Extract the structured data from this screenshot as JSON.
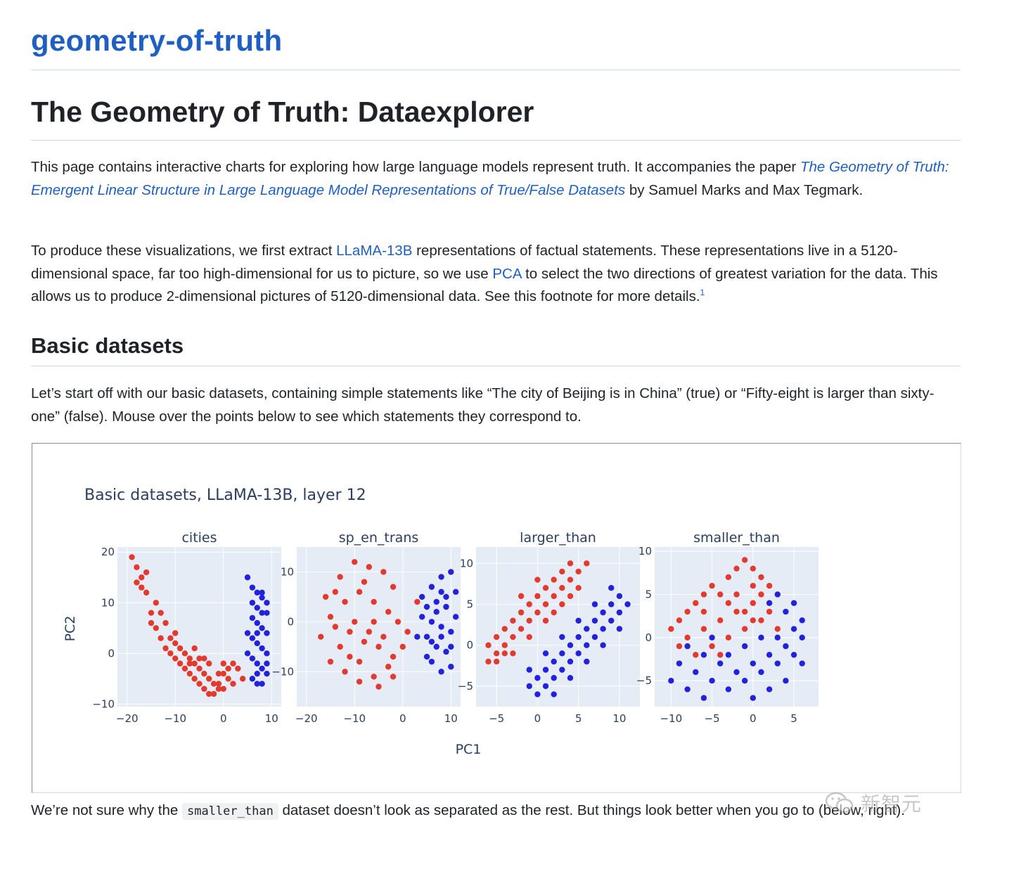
{
  "site": {
    "title": "geometry-of-truth"
  },
  "page": {
    "title": "The Geometry of Truth: Dataexplorer"
  },
  "intro": {
    "p1_before": "This page contains interactive charts for exploring how large language models represent truth. It accompanies the paper ",
    "p1_link": "The Geometry of Truth: Emergent Linear Structure in Large Language Model Representations of True/False Datasets",
    "p1_after": " by Samuel Marks and Max Tegmark.",
    "p2_a": "To produce these visualizations, we first extract ",
    "p2_link1": "LLaMA-13B",
    "p2_b": " representations of factual statements. These representations live in a 5120-dimensional space, far too high-dimensional for us to picture, so we use ",
    "p2_link2": "PCA",
    "p2_c": " to select the two directions of greatest variation for the data. This allows us to produce 2-dimensional pictures of 5120-dimensional data. See this footnote for more details.",
    "p2_footnote": "1"
  },
  "basic": {
    "heading": "Basic datasets",
    "p1": "Let’s start off with our basic datasets, containing simple statements like “The city of Beijing is in China” (true) or “Fifty-eight is larger than sixty-one” (false). Mouse over the points below to see which statements they correspond to.",
    "after_before": "We’re not sure why the ",
    "after_code": "smaller_than",
    "after_after": " dataset doesn’t look as separated as the rest. But things look better when you go to ",
    "after_tail": "(below, right)."
  },
  "watermark": {
    "text": "新智元"
  },
  "colors": {
    "true": "#2222dd",
    "false": "#e23a2e",
    "plot_bg": "#e5ecf6",
    "grid": "#ffffff",
    "link": "#1f5fbf"
  },
  "chart_data": {
    "type": "scatter",
    "title": "Basic datasets, LLaMA-13B, layer 12",
    "xlabel": "PC1",
    "ylabel": "PC2",
    "grid": true,
    "series_names": [
      "true",
      "false"
    ],
    "subplots": [
      {
        "name": "cities",
        "xlim": [
          -22,
          12
        ],
        "ylim": [
          -10.5,
          21
        ],
        "xticks": [
          -20,
          -10,
          0,
          10
        ],
        "yticks": [
          -10,
          0,
          10,
          20
        ],
        "false_points": [
          [
            -19,
            19
          ],
          [
            -18,
            17
          ],
          [
            -17,
            15
          ],
          [
            -16,
            12
          ],
          [
            -15,
            8
          ],
          [
            -14,
            5
          ],
          [
            -13,
            3
          ],
          [
            -12,
            1
          ],
          [
            -11,
            0
          ],
          [
            -10,
            -1
          ],
          [
            -9,
            -2
          ],
          [
            -8,
            -3
          ],
          [
            -7,
            -4
          ],
          [
            -6,
            -5
          ],
          [
            -5,
            -6
          ],
          [
            -4,
            -7
          ],
          [
            -3,
            -8
          ],
          [
            -2,
            -8
          ],
          [
            -1,
            -6
          ],
          [
            0,
            -4
          ],
          [
            1,
            -3
          ],
          [
            2,
            -2
          ],
          [
            3,
            -3
          ],
          [
            4,
            -5
          ],
          [
            -16,
            16
          ],
          [
            -14,
            10
          ],
          [
            -12,
            6
          ],
          [
            -11,
            3
          ],
          [
            -9,
            1
          ],
          [
            -8,
            0
          ],
          [
            -7,
            -1
          ],
          [
            -6,
            -2
          ],
          [
            -5,
            -3
          ],
          [
            -4,
            -4
          ],
          [
            -3,
            -5
          ],
          [
            -2,
            -6
          ],
          [
            -1,
            -7
          ],
          [
            0,
            -7
          ],
          [
            -13,
            8
          ],
          [
            -10,
            2
          ],
          [
            -7,
            -2
          ],
          [
            -5,
            -1
          ],
          [
            -3,
            -2
          ],
          [
            -1,
            -4
          ],
          [
            1,
            -5
          ],
          [
            2,
            -6
          ],
          [
            -17,
            13
          ],
          [
            -15,
            6
          ],
          [
            -18,
            14
          ],
          [
            -10,
            4
          ],
          [
            -6,
            1
          ],
          [
            -4,
            -1
          ],
          [
            0,
            -2
          ]
        ],
        "true_points": [
          [
            5,
            15
          ],
          [
            6,
            13
          ],
          [
            7,
            12
          ],
          [
            8,
            11
          ],
          [
            6,
            10
          ],
          [
            7,
            9
          ],
          [
            8,
            8
          ],
          [
            6,
            7
          ],
          [
            7,
            6
          ],
          [
            8,
            5
          ],
          [
            9,
            4
          ],
          [
            6,
            3
          ],
          [
            7,
            2
          ],
          [
            8,
            1
          ],
          [
            9,
            0
          ],
          [
            6,
            -1
          ],
          [
            7,
            -2
          ],
          [
            8,
            -3
          ],
          [
            9,
            -4
          ],
          [
            6,
            -5
          ],
          [
            7,
            -6
          ],
          [
            8,
            -6
          ],
          [
            9,
            -2
          ],
          [
            5,
            0
          ],
          [
            5,
            4
          ],
          [
            9,
            8
          ],
          [
            9,
            10
          ],
          [
            8,
            12
          ],
          [
            7,
            4
          ],
          [
            7,
            -4
          ]
        ]
      },
      {
        "name": "sp_en_trans",
        "xlim": [
          -22,
          12
        ],
        "ylim": [
          -17,
          15
        ],
        "xticks": [
          -20,
          -10,
          0,
          10
        ],
        "yticks": [
          -10,
          0,
          10
        ],
        "false_points": [
          [
            -16,
            5
          ],
          [
            -13,
            9
          ],
          [
            -10,
            12
          ],
          [
            -7,
            11
          ],
          [
            -4,
            10
          ],
          [
            -2,
            7
          ],
          [
            -15,
            1
          ],
          [
            -12,
            4
          ],
          [
            -9,
            6
          ],
          [
            -6,
            4
          ],
          [
            -3,
            2
          ],
          [
            -1,
            0
          ],
          [
            -17,
            -3
          ],
          [
            -14,
            -1
          ],
          [
            -11,
            -2
          ],
          [
            -8,
            -4
          ],
          [
            -5,
            -5
          ],
          [
            -2,
            -7
          ],
          [
            -15,
            -8
          ],
          [
            -12,
            -10
          ],
          [
            -9,
            -12
          ],
          [
            -6,
            -11
          ],
          [
            -3,
            -9
          ],
          [
            0,
            -5
          ],
          [
            -10,
            0
          ],
          [
            -7,
            -2
          ],
          [
            -4,
            -3
          ],
          [
            -8,
            8
          ],
          [
            -11,
            -7
          ],
          [
            -5,
            -13
          ],
          [
            -13,
            -5
          ],
          [
            -2,
            -11
          ],
          [
            1,
            -2
          ],
          [
            3,
            4
          ],
          [
            -14,
            6
          ],
          [
            -9,
            -8
          ],
          [
            -6,
            0
          ]
        ],
        "true_points": [
          [
            4,
            5
          ],
          [
            6,
            7
          ],
          [
            8,
            9
          ],
          [
            10,
            10
          ],
          [
            5,
            3
          ],
          [
            7,
            4
          ],
          [
            9,
            5
          ],
          [
            11,
            6
          ],
          [
            4,
            1
          ],
          [
            6,
            0
          ],
          [
            8,
            -1
          ],
          [
            10,
            -2
          ],
          [
            5,
            -3
          ],
          [
            7,
            -5
          ],
          [
            9,
            -6
          ],
          [
            6,
            -8
          ],
          [
            8,
            -10
          ],
          [
            10,
            -9
          ],
          [
            3,
            -3
          ],
          [
            11,
            1
          ],
          [
            7,
            2
          ],
          [
            9,
            3
          ],
          [
            6,
            -4
          ],
          [
            8,
            -3
          ],
          [
            10,
            -5
          ],
          [
            8,
            6
          ],
          [
            5,
            -7
          ]
        ]
      },
      {
        "name": "larger_than",
        "xlim": [
          -7.5,
          12.5
        ],
        "ylim": [
          -7.5,
          12
        ],
        "xticks": [
          -5,
          0,
          5,
          10
        ],
        "yticks": [
          -5,
          0,
          5,
          10
        ],
        "false_points": [
          [
            -6,
            -2
          ],
          [
            -5,
            -1
          ],
          [
            -4,
            0
          ],
          [
            -3,
            1
          ],
          [
            -2,
            2
          ],
          [
            -1,
            3
          ],
          [
            0,
            4
          ],
          [
            1,
            5
          ],
          [
            2,
            6
          ],
          [
            3,
            7
          ],
          [
            4,
            8
          ],
          [
            5,
            9
          ],
          [
            -5,
            1
          ],
          [
            -4,
            2
          ],
          [
            -3,
            3
          ],
          [
            -2,
            4
          ],
          [
            -1,
            5
          ],
          [
            0,
            6
          ],
          [
            1,
            7
          ],
          [
            2,
            8
          ],
          [
            3,
            9
          ],
          [
            4,
            10
          ],
          [
            -6,
            0
          ],
          [
            -5,
            -2
          ],
          [
            -3,
            -1
          ],
          [
            -1,
            1
          ],
          [
            1,
            3
          ],
          [
            3,
            5
          ],
          [
            5,
            7
          ],
          [
            6,
            10
          ],
          [
            0,
            8
          ],
          [
            -2,
            6
          ],
          [
            4,
            6
          ],
          [
            2,
            4
          ],
          [
            -4,
            -1
          ]
        ],
        "true_points": [
          [
            -1,
            -5
          ],
          [
            0,
            -4
          ],
          [
            1,
            -3
          ],
          [
            2,
            -2
          ],
          [
            3,
            -1
          ],
          [
            4,
            0
          ],
          [
            5,
            1
          ],
          [
            6,
            2
          ],
          [
            7,
            3
          ],
          [
            8,
            4
          ],
          [
            9,
            5
          ],
          [
            10,
            6
          ],
          [
            0,
            -6
          ],
          [
            1,
            -5
          ],
          [
            2,
            -4
          ],
          [
            3,
            -3
          ],
          [
            4,
            -2
          ],
          [
            5,
            -1
          ],
          [
            6,
            0
          ],
          [
            7,
            1
          ],
          [
            8,
            2
          ],
          [
            9,
            3
          ],
          [
            10,
            4
          ],
          [
            11,
            5
          ],
          [
            -1,
            -3
          ],
          [
            1,
            -1
          ],
          [
            3,
            1
          ],
          [
            5,
            3
          ],
          [
            7,
            5
          ],
          [
            9,
            7
          ],
          [
            2,
            -6
          ],
          [
            4,
            -4
          ],
          [
            6,
            -2
          ],
          [
            8,
            0
          ],
          [
            10,
            2
          ]
        ]
      },
      {
        "name": "smaller_than",
        "xlim": [
          -12,
          8
        ],
        "ylim": [
          -8,
          10.5
        ],
        "xticks": [
          -10,
          -5,
          0,
          5
        ],
        "yticks": [
          -5,
          0,
          5,
          10
        ],
        "false_points": [
          [
            -9,
            2
          ],
          [
            -8,
            3
          ],
          [
            -7,
            4
          ],
          [
            -6,
            5
          ],
          [
            -5,
            6
          ],
          [
            -4,
            5
          ],
          [
            -3,
            7
          ],
          [
            -2,
            8
          ],
          [
            -1,
            9
          ],
          [
            0,
            8
          ],
          [
            1,
            7
          ],
          [
            2,
            6
          ],
          [
            -8,
            0
          ],
          [
            -6,
            1
          ],
          [
            -4,
            2
          ],
          [
            -2,
            3
          ],
          [
            0,
            4
          ],
          [
            2,
            3
          ],
          [
            -5,
            -1
          ],
          [
            -3,
            0
          ],
          [
            -1,
            1
          ],
          [
            1,
            2
          ],
          [
            3,
            1
          ],
          [
            -7,
            -2
          ],
          [
            -10,
            1
          ],
          [
            -9,
            -1
          ],
          [
            -6,
            3
          ],
          [
            -2,
            5
          ],
          [
            0,
            6
          ],
          [
            1,
            5
          ],
          [
            -1,
            3
          ],
          [
            -4,
            -2
          ],
          [
            -3,
            4
          ],
          [
            0,
            2
          ]
        ],
        "true_points": [
          [
            -9,
            -3
          ],
          [
            -7,
            -4
          ],
          [
            -5,
            -5
          ],
          [
            -3,
            -6
          ],
          [
            -1,
            -5
          ],
          [
            1,
            -4
          ],
          [
            3,
            -3
          ],
          [
            5,
            -2
          ],
          [
            6,
            0
          ],
          [
            6,
            2
          ],
          [
            5,
            4
          ],
          [
            3,
            5
          ],
          [
            -8,
            -1
          ],
          [
            -6,
            -2
          ],
          [
            -4,
            -3
          ],
          [
            -2,
            -4
          ],
          [
            0,
            -3
          ],
          [
            2,
            -2
          ],
          [
            4,
            -1
          ],
          [
            5,
            1
          ],
          [
            4,
            3
          ],
          [
            2,
            4
          ],
          [
            -10,
            -5
          ],
          [
            -8,
            -6
          ],
          [
            -6,
            -7
          ],
          [
            -3,
            -2
          ],
          [
            -1,
            -1
          ],
          [
            1,
            0
          ],
          [
            3,
            0
          ],
          [
            -5,
            0
          ],
          [
            6,
            -3
          ],
          [
            4,
            -5
          ],
          [
            2,
            -6
          ],
          [
            0,
            -7
          ]
        ]
      }
    ]
  }
}
